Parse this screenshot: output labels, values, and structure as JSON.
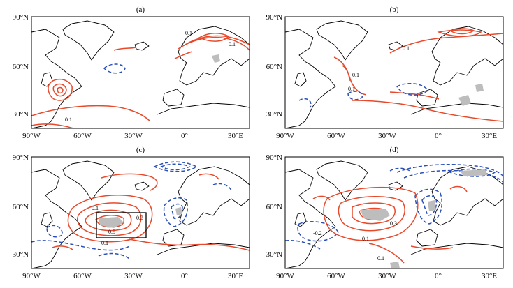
{
  "figure": {
    "panels": [
      {
        "label": "(a)"
      },
      {
        "label": "(b)"
      },
      {
        "label": "(c)"
      },
      {
        "label": "(d)"
      }
    ],
    "lat_ticks": [
      "90°N",
      "60°N",
      "30°N"
    ],
    "lon_ticks": [
      "90°W",
      "60°W",
      "30°W",
      "0°",
      "30°E"
    ],
    "contour_labels": {
      "a": [
        "0.1",
        "0.1",
        "0.1"
      ],
      "b": [
        "0.1",
        "0.1",
        "0.1"
      ],
      "c": [
        "0.1",
        "0.3",
        "0.5",
        "0.1"
      ],
      "d": [
        "0.3",
        "0.1",
        "-0.2",
        "0.1"
      ]
    },
    "colors": {
      "positive": "#e8492b",
      "negative": "#2a4fb8",
      "significant": "#bdbdbd"
    }
  }
}
